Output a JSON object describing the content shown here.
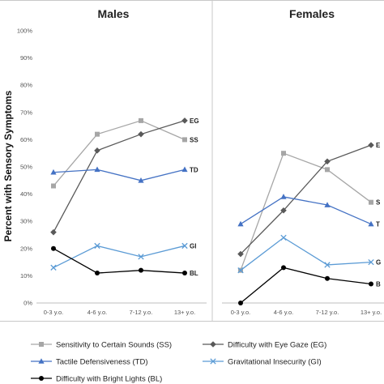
{
  "chart_data": {
    "type": "line",
    "ylabel": "Percent with Sensory Symptoms",
    "ylim": [
      0,
      100
    ],
    "y_ticks": [
      "0%",
      "10%",
      "20%",
      "30%",
      "40%",
      "50%",
      "60%",
      "70%",
      "80%",
      "90%",
      "100%"
    ],
    "categories": [
      "0-3 y.o.",
      "4-6 y.o.",
      "7-12 y.o.",
      "13+ y.o."
    ],
    "grid": false,
    "legend_position": "bottom",
    "series_meta": [
      {
        "name": "Sensitivity to Certain Sounds (SS)",
        "code": "SS",
        "color": "#a6a6a6",
        "marker": "square"
      },
      {
        "name": "Difficulty with Eye Gaze (EG)",
        "code": "EG",
        "color": "#595959",
        "marker": "diamond"
      },
      {
        "name": "Tactile Defensiveness (TD)",
        "code": "TD",
        "color": "#4472c4",
        "marker": "triangle"
      },
      {
        "name": "Gravitational Insecurity (GI)",
        "code": "GI",
        "color": "#5b9bd5",
        "marker": "x"
      },
      {
        "name": "Difficulty with Bright Lights (BL)",
        "code": "BL",
        "color": "#000000",
        "marker": "circle"
      }
    ],
    "panels": [
      {
        "title": "Males",
        "series": [
          {
            "code": "SS",
            "values": [
              43,
              62,
              67,
              60
            ],
            "end_label": "SS"
          },
          {
            "code": "EG",
            "values": [
              26,
              56,
              62,
              67
            ],
            "end_label": "EG"
          },
          {
            "code": "TD",
            "values": [
              48,
              49,
              45,
              49
            ],
            "end_label": "TD"
          },
          {
            "code": "GI",
            "values": [
              13,
              21,
              17,
              21
            ],
            "end_label": "GI"
          },
          {
            "code": "BL",
            "values": [
              20,
              11,
              12,
              11
            ],
            "end_label": "BL"
          }
        ]
      },
      {
        "title": "Females",
        "series": [
          {
            "code": "SS",
            "values": [
              12,
              55,
              49,
              37
            ],
            "end_label": "S"
          },
          {
            "code": "EG",
            "values": [
              18,
              34,
              52,
              58
            ],
            "end_label": "E"
          },
          {
            "code": "TD",
            "values": [
              29,
              39,
              36,
              29
            ],
            "end_label": "T"
          },
          {
            "code": "GI",
            "values": [
              12,
              24,
              14,
              15
            ],
            "end_label": "G"
          },
          {
            "code": "BL",
            "values": [
              0,
              13,
              9,
              7
            ],
            "end_label": "B"
          }
        ]
      }
    ]
  }
}
